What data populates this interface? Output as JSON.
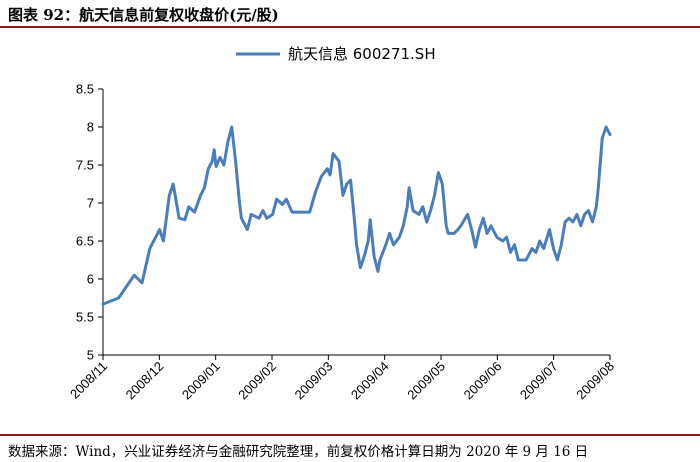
{
  "figure": {
    "title": "图表 92：航天信息前复权收盘价(元/股)",
    "source": "数据来源：Wind，兴业证券经济与金融研究院整理，前复权价格计算日期为 2020 年 9 月 16 日"
  },
  "colors": {
    "line": "#4a7ebb",
    "rule": "#8b1a1a",
    "axis": "#000000"
  },
  "chart_data": {
    "type": "line",
    "title": "",
    "xlabel": "",
    "ylabel": "",
    "ylim": [
      5,
      8.5
    ],
    "yticks": [
      "5",
      "5.5",
      "6",
      "6.5",
      "7",
      "7.5",
      "8",
      "8.5"
    ],
    "xticks": [
      "2008/11",
      "2008/12",
      "2009/01",
      "2009/02",
      "2009/03",
      "2009/04",
      "2009/05",
      "2009/06",
      "2009/07",
      "2009/08"
    ],
    "grid": false,
    "legend": "top-center",
    "series": [
      {
        "name": "航天信息 600271.SH",
        "points": [
          [
            0.0,
            5.67
          ],
          [
            0.4,
            5.75
          ],
          [
            0.8,
            6.05
          ],
          [
            1.0,
            5.95
          ],
          [
            1.2,
            6.4
          ],
          [
            1.45,
            6.65
          ],
          [
            1.55,
            6.5
          ],
          [
            1.7,
            7.1
          ],
          [
            1.8,
            7.25
          ],
          [
            1.95,
            6.8
          ],
          [
            2.1,
            6.78
          ],
          [
            2.2,
            6.95
          ],
          [
            2.35,
            6.88
          ],
          [
            2.5,
            7.1
          ],
          [
            2.6,
            7.2
          ],
          [
            2.7,
            7.45
          ],
          [
            2.8,
            7.55
          ],
          [
            2.85,
            7.7
          ],
          [
            2.9,
            7.48
          ],
          [
            3.0,
            7.6
          ],
          [
            3.1,
            7.5
          ],
          [
            3.2,
            7.8
          ],
          [
            3.3,
            8.0
          ],
          [
            3.4,
            7.55
          ],
          [
            3.5,
            7.0
          ],
          [
            3.55,
            6.8
          ],
          [
            3.7,
            6.65
          ],
          [
            3.8,
            6.85
          ],
          [
            4.0,
            6.8
          ],
          [
            4.1,
            6.9
          ],
          [
            4.2,
            6.8
          ],
          [
            4.35,
            6.85
          ],
          [
            4.45,
            7.05
          ],
          [
            4.6,
            6.98
          ],
          [
            4.7,
            7.05
          ],
          [
            4.85,
            6.88
          ],
          [
            5.0,
            6.88
          ],
          [
            5.3,
            6.88
          ],
          [
            5.45,
            7.15
          ],
          [
            5.6,
            7.35
          ],
          [
            5.75,
            7.45
          ],
          [
            5.82,
            7.37
          ],
          [
            5.9,
            7.65
          ],
          [
            6.05,
            7.55
          ],
          [
            6.15,
            7.1
          ],
          [
            6.25,
            7.25
          ],
          [
            6.35,
            7.3
          ],
          [
            6.45,
            6.75
          ],
          [
            6.5,
            6.45
          ],
          [
            6.6,
            6.15
          ],
          [
            6.7,
            6.3
          ],
          [
            6.8,
            6.5
          ],
          [
            6.85,
            6.78
          ],
          [
            6.95,
            6.3
          ],
          [
            7.05,
            6.1
          ],
          [
            7.1,
            6.25
          ],
          [
            7.25,
            6.45
          ],
          [
            7.35,
            6.6
          ],
          [
            7.45,
            6.45
          ],
          [
            7.6,
            6.55
          ],
          [
            7.7,
            6.7
          ],
          [
            7.8,
            6.95
          ],
          [
            7.85,
            7.2
          ],
          [
            7.95,
            6.9
          ],
          [
            8.1,
            6.85
          ],
          [
            8.2,
            6.95
          ],
          [
            8.3,
            6.75
          ],
          [
            8.4,
            6.9
          ],
          [
            8.5,
            7.1
          ],
          [
            8.6,
            7.4
          ],
          [
            8.7,
            7.25
          ],
          [
            8.8,
            6.7
          ],
          [
            8.85,
            6.6
          ],
          [
            9.0,
            6.6
          ],
          [
            9.1,
            6.65
          ],
          [
            9.2,
            6.72
          ],
          [
            9.35,
            6.85
          ],
          [
            9.45,
            6.65
          ],
          [
            9.55,
            6.42
          ],
          [
            9.65,
            6.65
          ],
          [
            9.75,
            6.8
          ],
          [
            9.85,
            6.6
          ],
          [
            9.95,
            6.7
          ],
          [
            10.1,
            6.55
          ],
          [
            10.25,
            6.5
          ],
          [
            10.35,
            6.55
          ],
          [
            10.45,
            6.35
          ],
          [
            10.55,
            6.45
          ],
          [
            10.65,
            6.25
          ],
          [
            10.85,
            6.25
          ],
          [
            11.0,
            6.4
          ],
          [
            11.1,
            6.35
          ],
          [
            11.2,
            6.5
          ],
          [
            11.3,
            6.4
          ],
          [
            11.45,
            6.65
          ],
          [
            11.55,
            6.4
          ],
          [
            11.65,
            6.25
          ],
          [
            11.75,
            6.45
          ],
          [
            11.85,
            6.75
          ],
          [
            11.95,
            6.8
          ],
          [
            12.05,
            6.75
          ],
          [
            12.15,
            6.85
          ],
          [
            12.25,
            6.7
          ],
          [
            12.35,
            6.85
          ],
          [
            12.45,
            6.9
          ],
          [
            12.55,
            6.75
          ],
          [
            12.65,
            6.95
          ],
          [
            12.7,
            7.2
          ],
          [
            12.8,
            7.85
          ],
          [
            12.9,
            8.0
          ],
          [
            13.0,
            7.9
          ]
        ]
      }
    ]
  }
}
